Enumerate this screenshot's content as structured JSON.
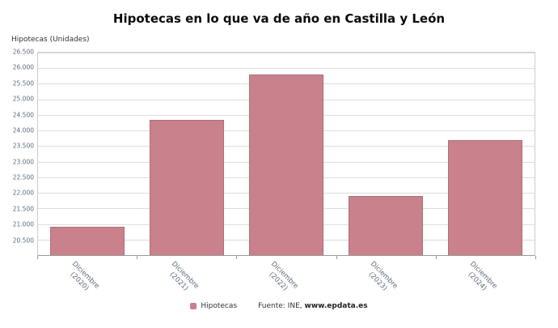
{
  "title": "Hipotecas en lo que va de año en Castilla y León",
  "y_axis_title": "Hipotecas (Unidades)",
  "footer": {
    "legend_label": "Hipotecas",
    "source_prefix": "Fuente: INE,",
    "source_link": "www.epdata.es"
  },
  "colors": {
    "bar_fill": "#c9818b",
    "bar_border": "#b06d77",
    "grid_line": "#dddddd",
    "plot_border": "#cccccc",
    "axis_line": "#999999",
    "tick_text": "#5c6b7c",
    "title_text": "#0a0a0a"
  },
  "chart_data": {
    "type": "bar",
    "title": "Hipotecas en lo que va de año en Castilla y León",
    "ylabel": "Hipotecas (Unidades)",
    "xlabel": "",
    "series_name": "Hipotecas",
    "categories": [
      "Diciembre (2020)",
      "Diciembre (2021)",
      "Diciembre (2022)",
      "Diciembre (2023)",
      "Diciembre (2024)"
    ],
    "category_lines": [
      [
        "Diciembre",
        "(2020)"
      ],
      [
        "Diciembre",
        "(2021)"
      ],
      [
        "Diciembre",
        "(2022)"
      ],
      [
        "Diciembre",
        "(2023)"
      ],
      [
        "Diciembre",
        "(2024)"
      ]
    ],
    "values": [
      20900,
      24340,
      25800,
      21900,
      23700
    ],
    "ylim": [
      20000,
      26500
    ],
    "ytick_values": [
      20500,
      21000,
      21500,
      22000,
      22500,
      23000,
      23500,
      24000,
      24500,
      25000,
      25500,
      26000,
      26500
    ],
    "ytick_labels": [
      "20.500",
      "21.000",
      "21.500",
      "22.000",
      "22.500",
      "23.000",
      "23.500",
      "24.000",
      "24.500",
      "25.000",
      "25.500",
      "26.000",
      "26.500"
    ],
    "grid": true,
    "legend_position": "bottom",
    "source": "Fuente: INE, www.epdata.es"
  }
}
